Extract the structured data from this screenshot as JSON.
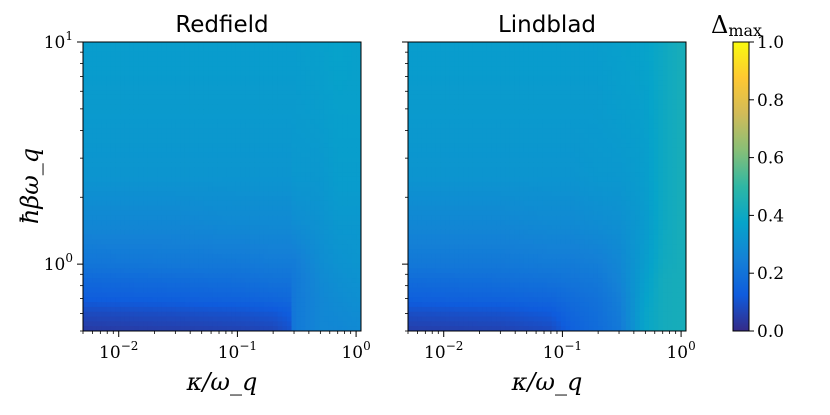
{
  "chart_data": [
    {
      "type": "heatmap",
      "title": "Redfield",
      "xlabel": "κ/ω_q",
      "ylabel": "ħβω_q",
      "xscale": "log",
      "yscale": "log",
      "xlim": [
        0.005,
        1.1
      ],
      "ylim": [
        0.5,
        10
      ],
      "x_ticks": [
        {
          "value": 0.01,
          "base": "10",
          "exp": "−2"
        },
        {
          "value": 0.1,
          "base": "10",
          "exp": "−1"
        },
        {
          "value": 1,
          "base": "10",
          "exp": "0"
        }
      ],
      "y_ticks": [
        {
          "value": 1,
          "base": "10",
          "exp": "0"
        },
        {
          "value": 10,
          "base": "10",
          "exp": "1"
        }
      ],
      "x": [
        0.005,
        0.03,
        0.1,
        0.2,
        0.28,
        0.3,
        0.5,
        0.7,
        1.0,
        1.1
      ],
      "y": [
        0.5,
        0.6,
        0.7,
        0.85,
        1.0,
        1.5,
        2.5,
        5.0,
        10.0
      ],
      "z": [
        [
          0.04,
          0.05,
          0.06,
          0.07,
          0.1,
          0.22,
          0.27,
          0.27,
          0.28,
          0.28
        ],
        [
          0.08,
          0.09,
          0.1,
          0.11,
          0.13,
          0.22,
          0.27,
          0.28,
          0.29,
          0.29
        ],
        [
          0.13,
          0.14,
          0.15,
          0.16,
          0.17,
          0.22,
          0.27,
          0.29,
          0.3,
          0.3
        ],
        [
          0.17,
          0.18,
          0.19,
          0.2,
          0.2,
          0.22,
          0.28,
          0.3,
          0.31,
          0.31
        ],
        [
          0.21,
          0.22,
          0.22,
          0.23,
          0.23,
          0.23,
          0.29,
          0.31,
          0.32,
          0.32
        ],
        [
          0.27,
          0.27,
          0.28,
          0.28,
          0.28,
          0.29,
          0.31,
          0.33,
          0.33,
          0.33
        ],
        [
          0.32,
          0.32,
          0.32,
          0.32,
          0.32,
          0.33,
          0.33,
          0.35,
          0.35,
          0.35
        ],
        [
          0.34,
          0.34,
          0.34,
          0.34,
          0.34,
          0.34,
          0.35,
          0.36,
          0.36,
          0.36
        ],
        [
          0.35,
          0.35,
          0.35,
          0.35,
          0.35,
          0.35,
          0.36,
          0.37,
          0.36,
          0.36
        ]
      ]
    },
    {
      "type": "heatmap",
      "title": "Lindblad",
      "xlabel": "κ/ω_q",
      "xscale": "log",
      "yscale": "log",
      "xlim": [
        0.005,
        1.1
      ],
      "ylim": [
        0.5,
        10
      ],
      "x_ticks": [
        {
          "value": 0.01,
          "base": "10",
          "exp": "−2"
        },
        {
          "value": 0.1,
          "base": "10",
          "exp": "−1"
        },
        {
          "value": 1,
          "base": "10",
          "exp": "0"
        }
      ],
      "x": [
        0.005,
        0.03,
        0.08,
        0.12,
        0.2,
        0.3,
        0.5,
        0.7,
        1.0,
        1.1
      ],
      "y": [
        0.5,
        0.6,
        0.7,
        0.85,
        1.0,
        1.5,
        2.5,
        5.0,
        10.0
      ],
      "z": [
        [
          0.05,
          0.06,
          0.08,
          0.14,
          0.18,
          0.22,
          0.38,
          0.42,
          0.43,
          0.43
        ],
        [
          0.09,
          0.1,
          0.12,
          0.16,
          0.19,
          0.23,
          0.38,
          0.42,
          0.43,
          0.43
        ],
        [
          0.14,
          0.15,
          0.16,
          0.18,
          0.2,
          0.24,
          0.37,
          0.42,
          0.43,
          0.43
        ],
        [
          0.18,
          0.19,
          0.2,
          0.21,
          0.22,
          0.26,
          0.36,
          0.42,
          0.43,
          0.43
        ],
        [
          0.22,
          0.22,
          0.23,
          0.23,
          0.24,
          0.27,
          0.35,
          0.41,
          0.43,
          0.43
        ],
        [
          0.27,
          0.27,
          0.28,
          0.28,
          0.29,
          0.3,
          0.34,
          0.4,
          0.43,
          0.43
        ],
        [
          0.32,
          0.32,
          0.32,
          0.32,
          0.33,
          0.33,
          0.35,
          0.4,
          0.43,
          0.43
        ],
        [
          0.34,
          0.34,
          0.34,
          0.34,
          0.34,
          0.35,
          0.36,
          0.4,
          0.43,
          0.43
        ],
        [
          0.35,
          0.35,
          0.35,
          0.35,
          0.35,
          0.36,
          0.37,
          0.4,
          0.43,
          0.43
        ]
      ]
    }
  ],
  "colorbar": {
    "label": "Δ_max",
    "label_main": "Δ",
    "label_sub": "max",
    "range": [
      0.0,
      1.0
    ],
    "ticks": [
      "0.0",
      "0.2",
      "0.4",
      "0.6",
      "0.8",
      "1.0"
    ],
    "colormap": "parula"
  },
  "colors": {
    "axis": "#000000",
    "background": "#ffffff"
  }
}
